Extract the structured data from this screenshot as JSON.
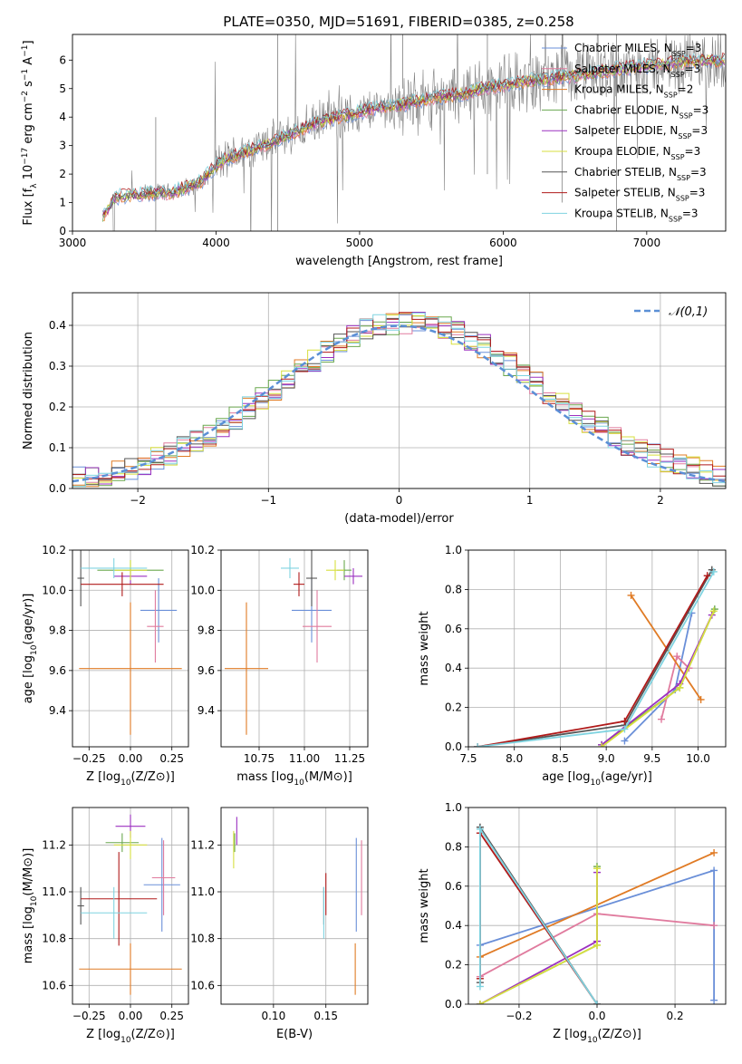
{
  "figure": {
    "title": "PLATE=0350, MJD=51691, FIBERID=0385, z=0.258"
  },
  "colors": {
    "Chabrier MILES": "#6a8fd8",
    "Salpeter MILES": "#e07b9e",
    "Kroupa MILES": "#e07b25",
    "Chabrier ELODIE": "#6aa84f",
    "Salpeter ELODIE": "#9b30c0",
    "Kroupa ELODIE": "#d7df3f",
    "Chabrier STELIB": "#555555",
    "Salpeter STELIB": "#b01a1a",
    "Kroupa STELIB": "#7fd3e0",
    "data": "#808080",
    "normal": "#5b8fd6",
    "grid": "#b0b0b0"
  },
  "chart_data": [
    {
      "id": "spectrum",
      "type": "line",
      "title": "PLATE=0350, MJD=51691, FIBERID=0385, z=0.258",
      "xlabel": "wavelength [Angstrom, rest frame]",
      "ylabel": "Flux [f_λ 10^-17 erg cm^-2 s^-1 A^-1]",
      "xlim": [
        3000,
        7550
      ],
      "ylim": [
        0,
        6.9
      ],
      "xticks": [
        3000,
        4000,
        5000,
        6000,
        7000
      ],
      "yticks": [
        0,
        1,
        2,
        3,
        4,
        5,
        6
      ],
      "grid": false,
      "legend_position": "right",
      "legend": [
        "Chabrier MILES, N_SSP=3",
        "Salpeter MILES, N_SSP=3",
        "Kroupa MILES, N_SSP=2",
        "Chabrier ELODIE, N_SSP=3",
        "Salpeter ELODIE, N_SSP=3",
        "Kroupa ELODIE, N_SSP=3",
        "Chabrier STELIB, N_SSP=3",
        "Salpeter STELIB, N_SSP=3",
        "Kroupa STELIB, N_SSP=3"
      ],
      "continuum": {
        "x": [
          3210,
          3300,
          3500,
          3700,
          3900,
          4000,
          4100,
          4300,
          4500,
          4700,
          4900,
          5100,
          5300,
          5500,
          5700,
          5900,
          6100,
          6300,
          6500,
          6700,
          6900,
          7100,
          7300,
          7550
        ],
        "y": [
          0.5,
          1.2,
          1.3,
          1.35,
          1.75,
          2.3,
          2.6,
          2.95,
          3.35,
          3.8,
          4.05,
          4.3,
          4.45,
          4.65,
          4.8,
          5.05,
          5.2,
          5.35,
          5.45,
          5.6,
          5.75,
          5.85,
          5.95,
          6.0
        ]
      }
    },
    {
      "id": "residuals",
      "type": "line",
      "xlabel": "(data-model)/error",
      "ylabel": "Normed distribution",
      "xlim": [
        -2.5,
        2.5
      ],
      "ylim": [
        0,
        0.48
      ],
      "xticks": [
        -2,
        -1,
        0,
        1,
        2
      ],
      "yticks": [
        0.0,
        0.1,
        0.2,
        0.3,
        0.4
      ],
      "grid": true,
      "legend_position": "top-right",
      "legend": [
        "𝒩(0,1)"
      ]
    },
    {
      "id": "age-vs-Z",
      "type": "scatter",
      "xlabel": "Z [log10(Z/Z⊙)]",
      "ylabel": "age  [log10(age/yr)]",
      "xlim": [
        -0.35,
        0.35
      ],
      "ylim": [
        9.22,
        10.2
      ],
      "xticks": [
        -0.25,
        0.0,
        0.25
      ],
      "yticks": [
        9.4,
        9.6,
        9.8,
        10.0,
        10.2
      ],
      "grid": true,
      "points": [
        {
          "model": "Chabrier MILES",
          "x": 0.17,
          "y": 9.9,
          "xerr": 0.11,
          "yerr": 0.16
        },
        {
          "model": "Salpeter MILES",
          "x": 0.15,
          "y": 9.82,
          "xerr": 0.05,
          "yerr": 0.18
        },
        {
          "model": "Kroupa MILES",
          "x": 0.0,
          "y": 9.61,
          "xerr": 0.31,
          "yerr": 0.33
        },
        {
          "model": "Chabrier ELODIE",
          "x": 0.0,
          "y": 10.1,
          "xerr": 0.2,
          "yerr": 0.05
        },
        {
          "model": "Salpeter ELODIE",
          "x": 0.0,
          "y": 10.07,
          "xerr": 0.1,
          "yerr": 0.04
        },
        {
          "model": "Kroupa ELODIE",
          "x": 0.0,
          "y": 10.1,
          "xerr": 0.1,
          "yerr": 0.05
        },
        {
          "model": "Chabrier STELIB",
          "x": -0.3,
          "y": 10.06,
          "xerr": 0.02,
          "yerr": 0.14
        },
        {
          "model": "Salpeter STELIB",
          "x": -0.05,
          "y": 10.03,
          "xerr": 0.25,
          "yerr": 0.06
        },
        {
          "model": "Kroupa STELIB",
          "x": -0.1,
          "y": 10.11,
          "xerr": 0.2,
          "yerr": 0.05
        }
      ]
    },
    {
      "id": "age-vs-mass",
      "type": "scatter",
      "xlabel": "mass [log10(M/M⊙)]",
      "ylabel": "",
      "xlim": [
        10.54,
        11.35
      ],
      "ylim": [
        9.22,
        10.2
      ],
      "xticks": [
        10.75,
        11.0,
        11.25
      ],
      "yticks": [
        9.4,
        9.6,
        9.8,
        10.0,
        10.2
      ],
      "grid": true,
      "points": [
        {
          "model": "Chabrier MILES",
          "x": 11.04,
          "y": 9.9,
          "xerr": 0.11,
          "yerr": 0.16
        },
        {
          "model": "Salpeter MILES",
          "x": 11.07,
          "y": 9.82,
          "xerr": 0.08,
          "yerr": 0.18
        },
        {
          "model": "Kroupa MILES",
          "x": 10.68,
          "y": 9.61,
          "xerr": 0.12,
          "yerr": 0.33
        },
        {
          "model": "Chabrier ELODIE",
          "x": 11.22,
          "y": 10.1,
          "xerr": 0.04,
          "yerr": 0.05
        },
        {
          "model": "Salpeter ELODIE",
          "x": 11.27,
          "y": 10.07,
          "xerr": 0.05,
          "yerr": 0.04
        },
        {
          "model": "Kroupa ELODIE",
          "x": 11.17,
          "y": 10.1,
          "xerr": 0.05,
          "yerr": 0.05
        },
        {
          "model": "Chabrier STELIB",
          "x": 11.04,
          "y": 10.06,
          "xerr": 0.03,
          "yerr": 0.14
        },
        {
          "model": "Salpeter STELIB",
          "x": 10.97,
          "y": 10.03,
          "xerr": 0.03,
          "yerr": 0.06
        },
        {
          "model": "Kroupa STELIB",
          "x": 10.92,
          "y": 10.11,
          "xerr": 0.05,
          "yerr": 0.05
        }
      ]
    },
    {
      "id": "weight-vs-age",
      "type": "line",
      "xlabel": "age  [log10(age/yr)]",
      "ylabel": "mass weight",
      "xlim": [
        7.5,
        10.3
      ],
      "ylim": [
        0,
        1
      ],
      "xticks": [
        7.5,
        8.0,
        8.5,
        9.0,
        9.5,
        10.0
      ],
      "yticks": [
        0.0,
        0.2,
        0.4,
        0.6,
        0.8,
        1.0
      ],
      "grid": true,
      "series": [
        {
          "model": "Chabrier MILES",
          "x": [
            9.2,
            9.75,
            9.93
          ],
          "y": [
            0.03,
            0.29,
            0.68
          ]
        },
        {
          "model": "Salpeter MILES",
          "x": [
            9.6,
            9.77,
            9.9
          ],
          "y": [
            0.14,
            0.46,
            0.4
          ]
        },
        {
          "model": "Kroupa MILES",
          "x": [
            9.27,
            10.03
          ],
          "y": [
            0.77,
            0.24
          ]
        },
        {
          "model": "Chabrier ELODIE",
          "x": [
            8.95,
            9.8,
            10.18
          ],
          "y": [
            0.01,
            0.3,
            0.7
          ]
        },
        {
          "model": "Salpeter ELODIE",
          "x": [
            8.95,
            9.8,
            10.15
          ],
          "y": [
            0.01,
            0.32,
            0.67
          ]
        },
        {
          "model": "Kroupa ELODIE",
          "x": [
            8.95,
            9.8,
            10.17
          ],
          "y": [
            0.0,
            0.3,
            0.69
          ]
        },
        {
          "model": "Chabrier STELIB",
          "x": [
            7.6,
            9.2,
            10.15
          ],
          "y": [
            0.0,
            0.11,
            0.9
          ]
        },
        {
          "model": "Salpeter STELIB",
          "x": [
            7.6,
            9.2,
            10.1
          ],
          "y": [
            0.0,
            0.13,
            0.87
          ]
        },
        {
          "model": "Kroupa STELIB",
          "x": [
            7.6,
            9.2,
            10.17
          ],
          "y": [
            0.0,
            0.09,
            0.89
          ]
        }
      ]
    },
    {
      "id": "mass-vs-Z",
      "type": "scatter",
      "xlabel": "Z [log10(Z/Z⊙)]",
      "ylabel": "mass [log10(M/M⊙)]",
      "xlim": [
        -0.35,
        0.35
      ],
      "ylim": [
        10.52,
        11.36
      ],
      "xticks": [
        -0.25,
        0.0,
        0.25
      ],
      "yticks": [
        10.6,
        10.8,
        11.0,
        11.2
      ],
      "grid": true,
      "points": [
        {
          "model": "Chabrier MILES",
          "x": 0.19,
          "y": 11.03,
          "xerr": 0.11,
          "yerr": 0.2
        },
        {
          "model": "Salpeter MILES",
          "x": 0.2,
          "y": 11.06,
          "xerr": 0.07,
          "yerr": 0.16
        },
        {
          "model": "Kroupa MILES",
          "x": 0.0,
          "y": 10.67,
          "xerr": 0.31,
          "yerr": 0.11
        },
        {
          "model": "Chabrier ELODIE",
          "x": -0.05,
          "y": 11.21,
          "xerr": 0.1,
          "yerr": 0.04
        },
        {
          "model": "Salpeter ELODIE",
          "x": 0.0,
          "y": 11.28,
          "xerr": 0.09,
          "yerr": 0.05
        },
        {
          "model": "Kroupa ELODIE",
          "x": 0.0,
          "y": 11.2,
          "xerr": 0.1,
          "yerr": 0.06
        },
        {
          "model": "Chabrier STELIB",
          "x": -0.3,
          "y": 10.94,
          "xerr": 0.02,
          "yerr": 0.08
        },
        {
          "model": "Salpeter STELIB",
          "x": -0.07,
          "y": 10.97,
          "xerr": 0.23,
          "yerr": 0.2
        },
        {
          "model": "Kroupa STELIB",
          "x": -0.1,
          "y": 10.91,
          "xerr": 0.2,
          "yerr": 0.11
        }
      ]
    },
    {
      "id": "mass-vs-ebv",
      "type": "scatter",
      "xlabel": "E(B-V)",
      "ylabel": "",
      "xlim": [
        0.05,
        0.19
      ],
      "ylim": [
        10.52,
        11.36
      ],
      "xticks": [
        0.1,
        0.15
      ],
      "yticks": [
        10.6,
        10.8,
        11.0,
        11.2
      ],
      "grid": true,
      "points": [
        {
          "model": "Chabrier MILES",
          "x": 0.179,
          "y": 11.03,
          "yerr": 0.2
        },
        {
          "model": "Salpeter MILES",
          "x": 0.184,
          "y": 11.06,
          "yerr": 0.16
        },
        {
          "model": "Kroupa MILES",
          "x": 0.178,
          "y": 10.67,
          "yerr": 0.11
        },
        {
          "model": "Chabrier ELODIE",
          "x": 0.063,
          "y": 11.21,
          "yerr": 0.04
        },
        {
          "model": "Salpeter ELODIE",
          "x": 0.065,
          "y": 11.26,
          "yerr": 0.06
        },
        {
          "model": "Kroupa ELODIE",
          "x": 0.062,
          "y": 11.18,
          "yerr": 0.08
        },
        {
          "model": "Chabrier STELIB",
          "x": 0.148,
          "y": 10.94,
          "yerr": 0.08
        },
        {
          "model": "Salpeter STELIB",
          "x": 0.15,
          "y": 10.99,
          "yerr": 0.09
        },
        {
          "model": "Kroupa STELIB",
          "x": 0.148,
          "y": 10.91,
          "yerr": 0.11
        }
      ]
    },
    {
      "id": "weight-vs-Z",
      "type": "line",
      "xlabel": "Z [log10(Z/Z⊙)]",
      "ylabel": "mass weight",
      "xlim": [
        -0.33,
        0.33
      ],
      "ylim": [
        0,
        1
      ],
      "xticks": [
        -0.2,
        0.0,
        0.2
      ],
      "yticks": [
        0.0,
        0.2,
        0.4,
        0.6,
        0.8,
        1.0
      ],
      "grid": true,
      "series": [
        {
          "model": "Chabrier MILES",
          "x": [
            -0.3,
            0.3,
            0.3
          ],
          "y": [
            0.3,
            0.68,
            0.02
          ]
        },
        {
          "model": "Salpeter MILES",
          "x": [
            -0.3,
            0.0,
            0.3
          ],
          "y": [
            0.14,
            0.46,
            0.4
          ]
        },
        {
          "model": "Kroupa MILES",
          "x": [
            -0.3,
            0.3
          ],
          "y": [
            0.24,
            0.77
          ]
        },
        {
          "model": "Chabrier ELODIE",
          "x": [
            -0.3,
            0.0,
            0.0
          ],
          "y": [
            0.0,
            0.3,
            0.7
          ]
        },
        {
          "model": "Salpeter ELODIE",
          "x": [
            -0.3,
            0.0,
            0.0
          ],
          "y": [
            0.0,
            0.32,
            0.67
          ]
        },
        {
          "model": "Kroupa ELODIE",
          "x": [
            -0.3,
            0.0,
            0.0
          ],
          "y": [
            0.0,
            0.3,
            0.69
          ]
        },
        {
          "model": "Chabrier STELIB",
          "x": [
            -0.3,
            -0.3,
            0.0
          ],
          "y": [
            0.11,
            0.9,
            0.0
          ]
        },
        {
          "model": "Salpeter STELIB",
          "x": [
            -0.3,
            -0.3,
            0.0
          ],
          "y": [
            0.13,
            0.87,
            0.0
          ]
        },
        {
          "model": "Kroupa STELIB",
          "x": [
            -0.3,
            -0.3,
            0.0
          ],
          "y": [
            0.09,
            0.89,
            0.0
          ]
        }
      ]
    }
  ]
}
